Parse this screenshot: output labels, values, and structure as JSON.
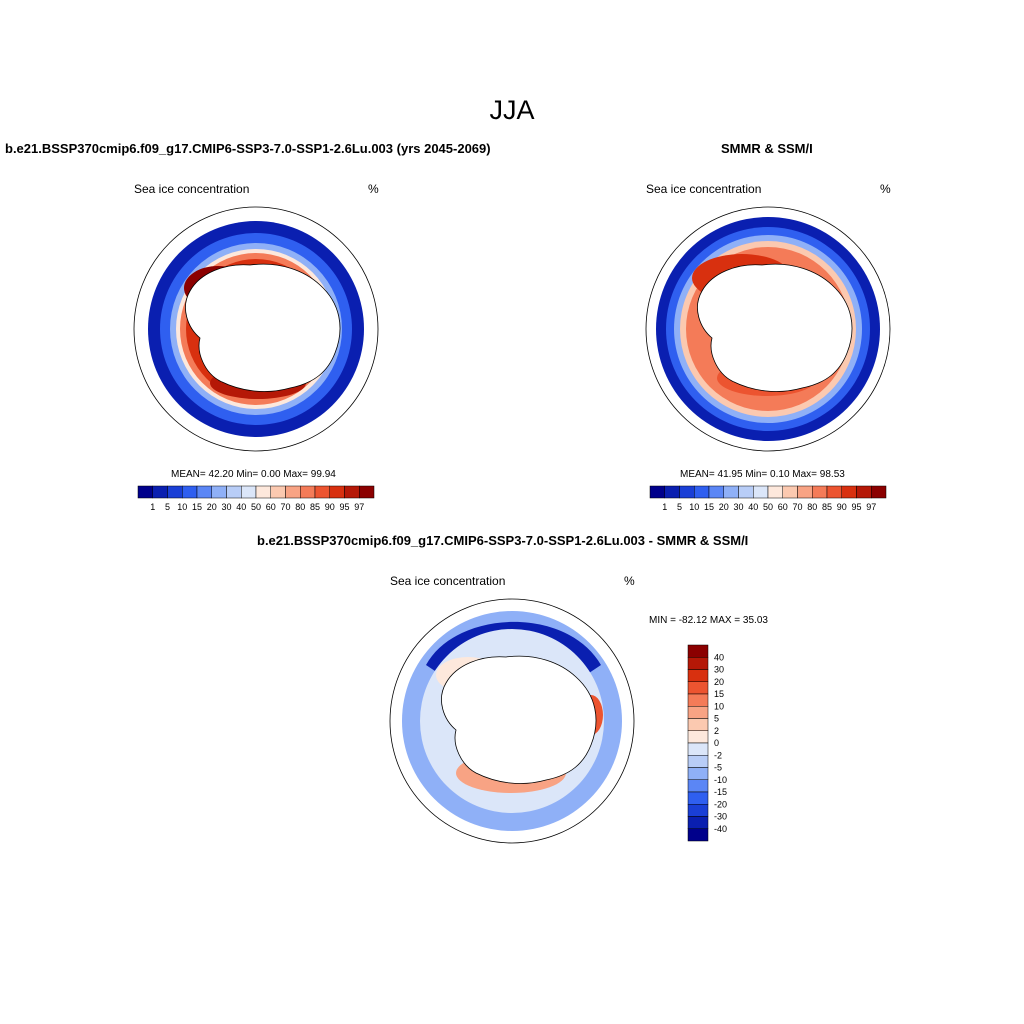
{
  "title": "JJA",
  "panels": [
    {
      "title": "b.e21.BSSP370cmip6.f09_g17.CMIP6-SSP3-7.0-SSP1-2.6Lu.003 (yrs 2045-2069)",
      "left_label": "Sea ice concentration",
      "right_label": "%",
      "stats": "MEAN=  42.20  Min=   0.00  Max=  99.94"
    },
    {
      "title": "SMMR & SSM/I",
      "left_label": "Sea ice concentration",
      "right_label": "%",
      "stats": "MEAN=  41.95  Min=   0.10  Max=  98.53"
    },
    {
      "title": "b.e21.BSSP370cmip6.f09_g17.CMIP6-SSP3-7.0-SSP1-2.6Lu.003 - SMMR & SSM/I",
      "left_label": "Sea ice concentration",
      "right_label": "%",
      "stats": "MIN = -82.12 MAX =  35.03"
    }
  ],
  "colorbar_abs": {
    "ticks": [
      "1",
      "5",
      "10",
      "15",
      "20",
      "30",
      "40",
      "50",
      "60",
      "70",
      "80",
      "85",
      "90",
      "95",
      "97"
    ],
    "colors": [
      "#00008b",
      "#0a1fb0",
      "#1a3fd6",
      "#2f5ff0",
      "#5b86f5",
      "#8fb0f7",
      "#b8cdf7",
      "#dbe6f9",
      "#fde8dc",
      "#fbc9b0",
      "#f8a384",
      "#f47b58",
      "#ec5430",
      "#d8300f",
      "#b51807",
      "#8b0000"
    ]
  },
  "colorbar_diff": {
    "ticks": [
      "40",
      "30",
      "20",
      "15",
      "10",
      "5",
      "2",
      "0",
      "-2",
      "-5",
      "-10",
      "-15",
      "-20",
      "-30",
      "-40"
    ],
    "colors": [
      "#8b0000",
      "#b51807",
      "#d8300f",
      "#ec5430",
      "#f47b58",
      "#f8a384",
      "#fbc9b0",
      "#fde8dc",
      "#dbe6f9",
      "#b8cdf7",
      "#8fb0f7",
      "#5b86f5",
      "#2f5ff0",
      "#1a3fd6",
      "#0a1fb0",
      "#00008b"
    ]
  }
}
